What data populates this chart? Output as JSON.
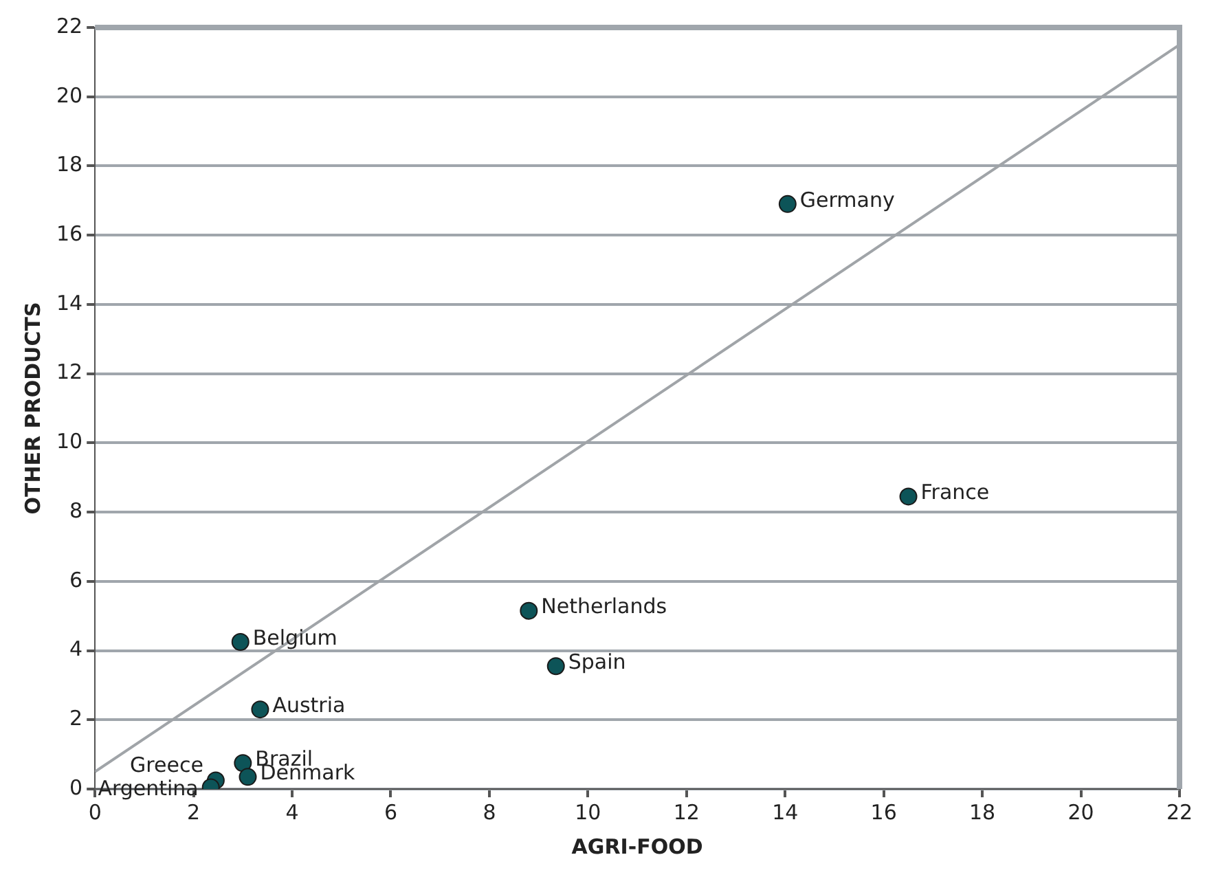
{
  "chart_data": {
    "type": "scatter",
    "xlabel": "AGRI-FOOD",
    "ylabel": "OTHER PRODUCTS",
    "xlim": [
      0,
      22
    ],
    "ylim": [
      0,
      22
    ],
    "xticks": [
      0,
      2,
      4,
      6,
      8,
      10,
      12,
      14,
      16,
      18,
      20,
      22
    ],
    "yticks": [
      0,
      2,
      4,
      6,
      8,
      10,
      12,
      14,
      16,
      18,
      20,
      22
    ],
    "grid": "y",
    "legend": false,
    "marker": "circle",
    "series": [
      {
        "type": "scatter",
        "color": "#0d5458",
        "x": [
          14.05,
          16.5,
          8.8,
          9.35,
          2.95,
          3.35,
          3.0,
          3.1,
          2.45,
          2.35
        ],
        "values": [
          16.9,
          8.45,
          5.15,
          3.55,
          4.25,
          2.3,
          0.75,
          0.35,
          0.25,
          0.05
        ]
      },
      {
        "type": "line",
        "color": "#a0a4a8",
        "x": [
          0,
          22
        ],
        "values": [
          0.5,
          21.5
        ],
        "marker": "none"
      }
    ],
    "annotations": [
      {
        "text": "Germany",
        "x": 14.05,
        "y": 16.9
      },
      {
        "text": "France",
        "x": 16.5,
        "y": 8.45
      },
      {
        "text": "Netherlands",
        "x": 8.8,
        "y": 5.15
      },
      {
        "text": "Spain",
        "x": 9.35,
        "y": 3.55
      },
      {
        "text": "Belgium",
        "x": 2.95,
        "y": 4.25
      },
      {
        "text": "Austria",
        "x": 3.35,
        "y": 2.3
      },
      {
        "text": "Brazil",
        "x": 3.0,
        "y": 0.75
      },
      {
        "text": "Denmark",
        "x": 3.1,
        "y": 0.35
      },
      {
        "text": "Greece",
        "x": 2.45,
        "y": 0.25
      },
      {
        "text": "Argentina",
        "x": 2.35,
        "y": 0.05
      }
    ]
  }
}
